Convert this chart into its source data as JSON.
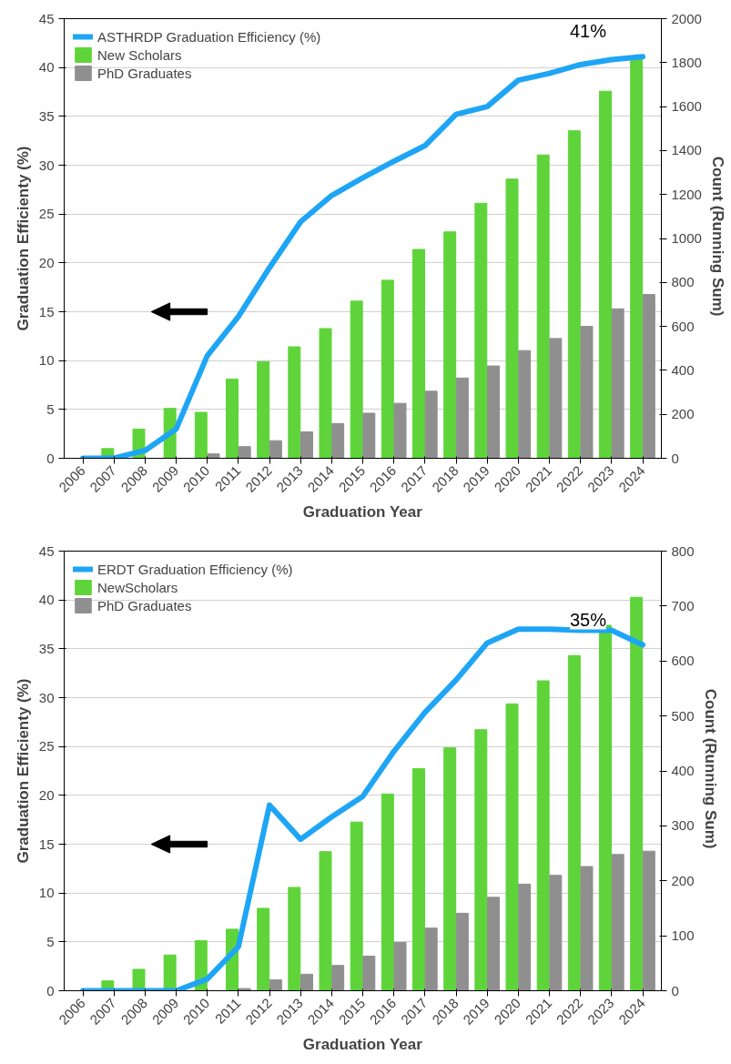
{
  "chart_data": [
    {
      "type": "bar",
      "categories": [
        "2006",
        "2007",
        "2008",
        "2009",
        "2010",
        "2011",
        "2012",
        "2013",
        "2014",
        "2015",
        "2016",
        "2017",
        "2018",
        "2019",
        "2020",
        "2021",
        "2022",
        "2023",
        "2024"
      ],
      "xlabel": "Graduation Year",
      "ylabel": "Graduation Efficienty (%)",
      "y2label": "Count  (Running Sum)",
      "ylim": [
        0,
        45
      ],
      "yticks": [
        0,
        5,
        10,
        15,
        20,
        25,
        30,
        35,
        40,
        45
      ],
      "y2lim": [
        0,
        2000
      ],
      "y2ticks": [
        0,
        200,
        400,
        600,
        800,
        1000,
        1200,
        1400,
        1600,
        1800,
        2000
      ],
      "grid": "y",
      "legend": "top left",
      "annotations": [
        {
          "text": "41%",
          "x": "2024",
          "y": 41.1
        }
      ],
      "series": [
        {
          "name": "ASTHRDP Graduation Efficiency (%)",
          "type": "line",
          "color": "#1ea5f5",
          "values": [
            0,
            0,
            0.8,
            3.0,
            10.5,
            14.5,
            19.5,
            24.2,
            26.9,
            28.7,
            30.4,
            32.0,
            35.2,
            36.0,
            38.7,
            39.4,
            40.3,
            40.8,
            41.1
          ]
        },
        {
          "name": "New Scholars",
          "axis": "y2",
          "color": "#5ed43a",
          "values": [
            0,
            44,
            133,
            227,
            209,
            360,
            440,
            507,
            590,
            715,
            810,
            950,
            1030,
            1160,
            1270,
            1380,
            1490,
            1670,
            1820
          ]
        },
        {
          "name": "PhD Graduates",
          "axis": "y2",
          "color": "#8f8f8f",
          "values": [
            0,
            0,
            0,
            0,
            20,
            53,
            80,
            120,
            158,
            205,
            250,
            305,
            365,
            420,
            490,
            545,
            600,
            680,
            745
          ]
        }
      ]
    },
    {
      "type": "bar",
      "categories": [
        "2006",
        "2007",
        "2008",
        "2009",
        "2010",
        "2011",
        "2012",
        "2013",
        "2014",
        "2015",
        "2016",
        "2017",
        "2018",
        "2019",
        "2020",
        "2021",
        "2022",
        "2023",
        "2024"
      ],
      "xlabel": "Graduation Year",
      "ylabel": "Graduation Efficienty (%)",
      "y2label": "Count  (Running Sum)",
      "ylim": [
        0,
        45
      ],
      "yticks": [
        0,
        5,
        10,
        15,
        20,
        25,
        30,
        35,
        40,
        45
      ],
      "y2lim": [
        0,
        800
      ],
      "y2ticks": [
        0,
        100,
        200,
        300,
        400,
        500,
        600,
        700,
        800
      ],
      "grid": "y",
      "legend": "top left",
      "annotations": [
        {
          "text": "35%",
          "x": "2024",
          "y": 35.4
        }
      ],
      "series": [
        {
          "name": "ERDT Graduation Efficiency (%)",
          "type": "line",
          "color": "#1ea5f5",
          "values": [
            0,
            0,
            0,
            0,
            1.2,
            4.5,
            19.0,
            15.5,
            17.8,
            19.9,
            24.5,
            28.5,
            31.8,
            35.6,
            37.0,
            37.0,
            36.9,
            36.9,
            35.4
          ]
        },
        {
          "name": "NewScholars",
          "axis": "y2",
          "color": "#5ed43a",
          "values": [
            0,
            18,
            39,
            65,
            91,
            112,
            150,
            188,
            253,
            307,
            358,
            404,
            442,
            475,
            522,
            564,
            610,
            665,
            716
          ]
        },
        {
          "name": "PhD Graduates",
          "axis": "y2",
          "color": "#8f8f8f",
          "values": [
            0,
            0,
            0,
            0,
            0,
            4,
            20,
            30,
            46,
            63,
            88,
            114,
            141,
            170,
            194,
            210,
            226,
            248,
            254
          ]
        }
      ]
    }
  ]
}
